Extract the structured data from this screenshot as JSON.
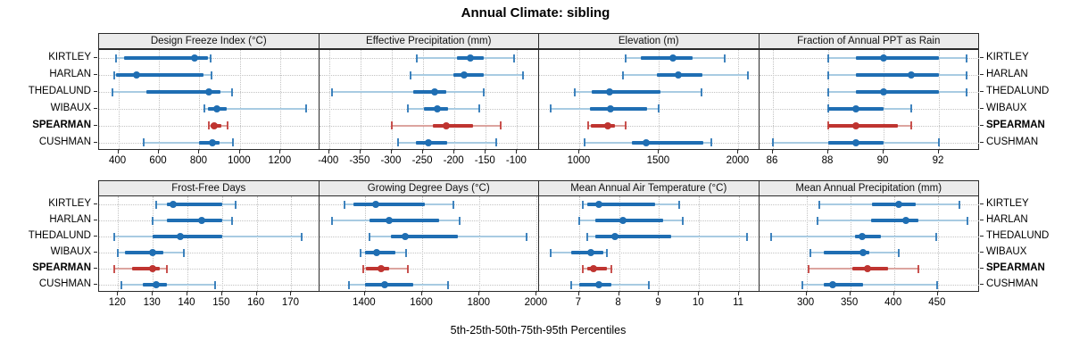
{
  "figure": {
    "title": "Annual Climate: sibling",
    "caption": "5th-25th-50th-75th-95th Percentiles"
  },
  "colors": {
    "normal_dark": "#1f6eb3",
    "normal_light": "#a8cbe2",
    "highlight_dark": "#bf3430",
    "highlight_light": "#dca49f",
    "strip_bg": "#ebebeb",
    "grid": "#c3c3c3",
    "border": "#2a2a2a",
    "text": "#000000"
  },
  "chart_data": {
    "type": "percentile-dotplot-trellis",
    "percentile_labels": [
      "5th",
      "25th",
      "50th",
      "75th",
      "95th"
    ],
    "rows_order": [
      "KIRTLEY",
      "HARLAN",
      "THEDALUND",
      "WIBAUX",
      "SPEARMAN",
      "CUSHMAN"
    ],
    "highlight": "SPEARMAN",
    "legend": "none",
    "panels": [
      {
        "title": "Design Freeze Index (°C)",
        "grid_row": 0,
        "grid_col": 0,
        "ticks": [
          400,
          600,
          800,
          1000,
          1200
        ],
        "domain": [
          305,
          1390
        ],
        "values": {
          "KIRTLEY": [
            390,
            430,
            775,
            840,
            855
          ],
          "HARLAN": [
            380,
            390,
            490,
            820,
            860
          ],
          "THEDALUND": [
            370,
            540,
            845,
            905,
            960
          ],
          "WIBAUX": [
            825,
            840,
            885,
            935,
            1325
          ],
          "SPEARMAN": [
            845,
            855,
            875,
            910,
            940
          ],
          "CUSHMAN": [
            525,
            800,
            865,
            900,
            965
          ]
        }
      },
      {
        "title": "Effective Precipitation (mm)",
        "grid_row": 0,
        "grid_col": 1,
        "ticks": [
          -400,
          -350,
          -300,
          -250,
          -200,
          -150,
          -100
        ],
        "domain": [
          -416,
          -65
        ],
        "values": {
          "KIRTLEY": [
            -260,
            -196,
            -175,
            -153,
            -105
          ],
          "HARLAN": [
            -270,
            -202,
            -184,
            -153,
            -90
          ],
          "THEDALUND": [
            -395,
            -266,
            -232,
            -213,
            -153
          ],
          "WIBAUX": [
            -275,
            -248,
            -228,
            -210,
            -160
          ],
          "SPEARMAN": [
            -300,
            -234,
            -213,
            -171,
            -126
          ],
          "CUSHMAN": [
            -290,
            -262,
            -241,
            -211,
            -134
          ]
        }
      },
      {
        "title": "Elevation (m)",
        "grid_row": 0,
        "grid_col": 2,
        "ticks": [
          1000,
          1500,
          2000
        ],
        "domain": [
          745,
          2130
        ],
        "values": {
          "KIRTLEY": [
            1290,
            1385,
            1590,
            1710,
            1915
          ],
          "HARLAN": [
            1275,
            1485,
            1620,
            1775,
            2060
          ],
          "THEDALUND": [
            970,
            1075,
            1190,
            1510,
            1765
          ],
          "WIBAUX": [
            820,
            1065,
            1195,
            1425,
            1500
          ],
          "SPEARMAN": [
            1055,
            1070,
            1175,
            1220,
            1290
          ],
          "CUSHMAN": [
            1030,
            1330,
            1420,
            1780,
            1830
          ]
        }
      },
      {
        "title": "Fraction of Annual PPT as Rain",
        "grid_row": 0,
        "grid_col": 3,
        "ticks": [
          86,
          88,
          90,
          92
        ],
        "domain": [
          85.5,
          93.45
        ],
        "values": {
          "KIRTLEY": [
            88,
            89,
            90,
            92,
            93
          ],
          "HARLAN": [
            88,
            89,
            91,
            92,
            93
          ],
          "THEDALUND": [
            88,
            89,
            90,
            92,
            93
          ],
          "WIBAUX": [
            88,
            88,
            89,
            90,
            91
          ],
          "SPEARMAN": [
            88,
            88,
            89,
            90.5,
            91
          ],
          "CUSHMAN": [
            86,
            88,
            89,
            90,
            92
          ]
        }
      },
      {
        "title": "Frost-Free Days",
        "grid_row": 1,
        "grid_col": 0,
        "ticks": [
          120,
          130,
          140,
          150,
          160,
          170
        ],
        "domain": [
          114.5,
          178
        ],
        "values": {
          "KIRTLEY": [
            131,
            134,
            136,
            150,
            154
          ],
          "HARLAN": [
            130,
            134,
            144,
            150,
            153
          ],
          "THEDALUND": [
            119,
            130,
            138,
            150,
            173
          ],
          "WIBAUX": [
            120,
            122,
            130,
            133,
            139
          ],
          "SPEARMAN": [
            119,
            124,
            130,
            132,
            134
          ],
          "CUSHMAN": [
            121,
            127,
            131,
            134,
            148
          ]
        }
      },
      {
        "title": "Growing Degree Days (°C)",
        "grid_row": 1,
        "grid_col": 1,
        "ticks": [
          1400,
          1600,
          1800,
          2000
        ],
        "domain": [
          1240,
          2008
        ],
        "values": {
          "KIRTLEY": [
            1330,
            1360,
            1437,
            1610,
            1710
          ],
          "HARLAN": [
            1285,
            1415,
            1485,
            1660,
            1730
          ],
          "THEDALUND": [
            1415,
            1490,
            1540,
            1725,
            1965
          ],
          "WIBAUX": [
            1385,
            1400,
            1440,
            1505,
            1545
          ],
          "SPEARMAN": [
            1395,
            1405,
            1457,
            1485,
            1550
          ],
          "CUSHMAN": [
            1345,
            1400,
            1468,
            1570,
            1690
          ]
        }
      },
      {
        "title": "Mean Annual Air Temperature (°C)",
        "grid_row": 1,
        "grid_col": 2,
        "ticks": [
          7,
          8,
          9,
          10,
          11
        ],
        "domain": [
          6.0,
          11.5
        ],
        "values": {
          "KIRTLEY": [
            7.1,
            7.2,
            7.5,
            8.9,
            9.5
          ],
          "HARLAN": [
            7.0,
            7.4,
            8.1,
            9.1,
            9.6
          ],
          "THEDALUND": [
            7.2,
            7.4,
            7.9,
            9.3,
            11.2
          ],
          "WIBAUX": [
            6.3,
            6.8,
            7.3,
            7.6,
            7.7
          ],
          "SPEARMAN": [
            7.1,
            7.2,
            7.35,
            7.7,
            7.8
          ],
          "CUSHMAN": [
            6.8,
            7.0,
            7.5,
            7.8,
            8.75
          ]
        }
      },
      {
        "title": "Mean Annual Precipitation (mm)",
        "grid_row": 1,
        "grid_col": 3,
        "ticks": [
          300,
          350,
          400,
          450
        ],
        "domain": [
          246,
          497
        ],
        "values": {
          "KIRTLEY": [
            315,
            375,
            405,
            425,
            475
          ],
          "HARLAN": [
            313,
            374,
            414,
            428,
            484
          ],
          "THEDALUND": [
            260,
            355,
            364,
            385,
            448
          ],
          "WIBAUX": [
            305,
            320,
            365,
            372,
            405
          ],
          "SPEARMAN": [
            303,
            352,
            370,
            393,
            428
          ],
          "CUSHMAN": [
            295,
            320,
            330,
            365,
            449
          ]
        }
      }
    ]
  }
}
